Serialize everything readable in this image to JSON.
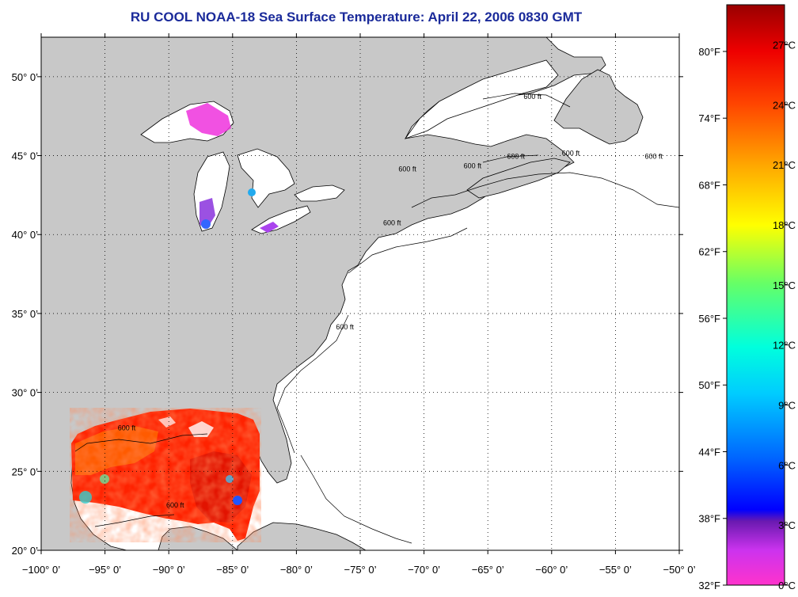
{
  "title": "RU COOL  NOAA-18  Sea Surface Temperature:  April 22, 2006 0830 GMT",
  "map": {
    "lon_range": [
      -100,
      -50
    ],
    "lat_range": [
      20,
      52.5
    ],
    "lon_ticks": [
      {
        "value": -100,
        "label": "−100° 0’"
      },
      {
        "value": -95,
        "label": "−95° 0’"
      },
      {
        "value": -90,
        "label": "−90° 0’"
      },
      {
        "value": -85,
        "label": "−85° 0’"
      },
      {
        "value": -80,
        "label": "−80° 0’"
      },
      {
        "value": -75,
        "label": "−75° 0’"
      },
      {
        "value": -70,
        "label": "−70° 0’"
      },
      {
        "value": -65,
        "label": "−65° 0’"
      },
      {
        "value": -60,
        "label": "−60° 0’"
      },
      {
        "value": -55,
        "label": "−55° 0’"
      },
      {
        "value": -50,
        "label": "−50° 0’"
      }
    ],
    "lat_ticks": [
      {
        "value": 20,
        "label": "20° 0’"
      },
      {
        "value": 25,
        "label": "25° 0’"
      },
      {
        "value": 30,
        "label": "30° 0’"
      },
      {
        "value": 35,
        "label": "35° 0’"
      },
      {
        "value": 40,
        "label": "40° 0’"
      },
      {
        "value": 45,
        "label": "45° 0’"
      },
      {
        "value": 50,
        "label": "50° 0’"
      }
    ],
    "contour_labels": [
      {
        "text": "600 ft",
        "lon": -61.5,
        "lat": 48.6
      },
      {
        "text": "600 ft",
        "lon": -52.0,
        "lat": 44.8
      },
      {
        "text": "600 ft",
        "lon": -71.3,
        "lat": 44.0
      },
      {
        "text": "600 ft",
        "lon": -66.2,
        "lat": 44.2
      },
      {
        "text": "600 ft",
        "lon": -62.8,
        "lat": 44.8
      },
      {
        "text": "600 ft",
        "lon": -58.5,
        "lat": 45.0
      },
      {
        "text": "600 ft",
        "lon": -72.5,
        "lat": 40.6
      },
      {
        "text": "600 ft",
        "lon": -76.2,
        "lat": 34.0
      },
      {
        "text": "600 ft",
        "lon": -93.3,
        "lat": 27.6
      },
      {
        "text": "600 ft",
        "lon": -89.5,
        "lat": 22.7
      }
    ],
    "colors": {
      "land": "#c8c8c8",
      "water": "#ffffff",
      "grid": "#000000"
    }
  },
  "colorbar": {
    "celsius": [
      {
        "value": 0,
        "label": "0°C"
      },
      {
        "value": 3,
        "label": "3°C"
      },
      {
        "value": 6,
        "label": "6°C"
      },
      {
        "value": 9,
        "label": "9°C"
      },
      {
        "value": 12,
        "label": "12°C"
      },
      {
        "value": 15,
        "label": "15°C"
      },
      {
        "value": 18,
        "label": "18°C"
      },
      {
        "value": 21,
        "label": "21°C"
      },
      {
        "value": 24,
        "label": "24°C"
      },
      {
        "value": 27,
        "label": "27°C"
      }
    ],
    "fahrenheit": [
      {
        "value": 32,
        "label": "32°F"
      },
      {
        "value": 38,
        "label": "38°F"
      },
      {
        "value": 44,
        "label": "44°F"
      },
      {
        "value": 50,
        "label": "50°F"
      },
      {
        "value": 56,
        "label": "56°F"
      },
      {
        "value": 62,
        "label": "62°F"
      },
      {
        "value": 68,
        "label": "68°F"
      },
      {
        "value": 74,
        "label": "74°F"
      },
      {
        "value": 80,
        "label": "80°F"
      }
    ],
    "range_c": [
      0,
      29
    ]
  }
}
